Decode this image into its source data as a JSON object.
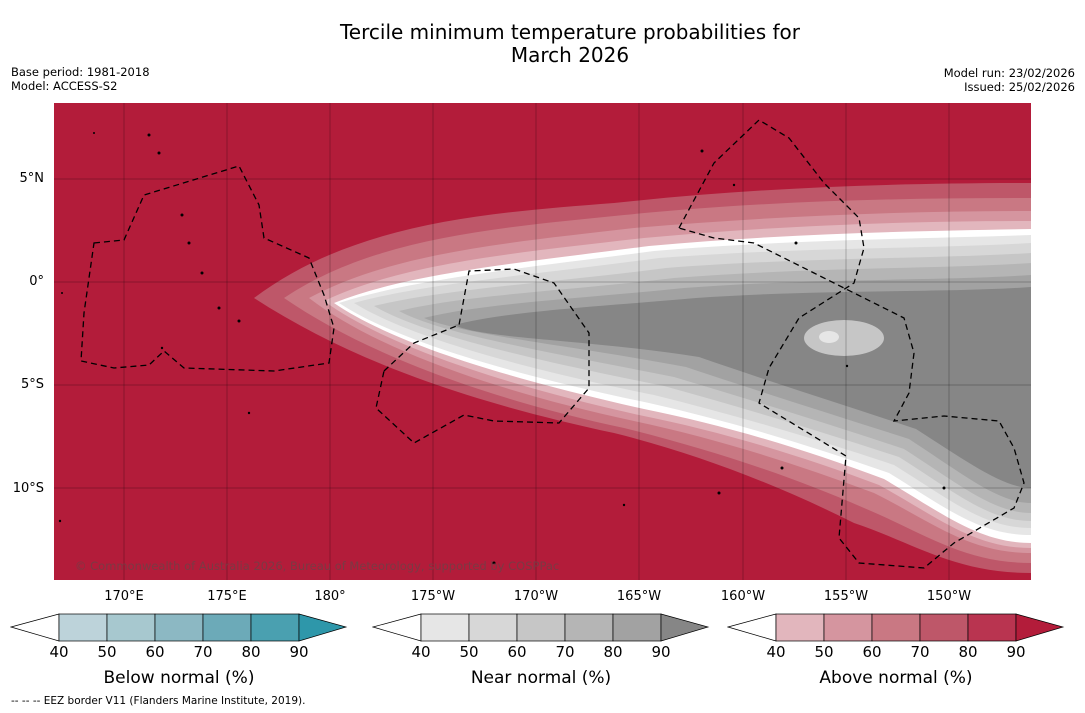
{
  "title_line1": "Tercile minimum temperature probabilities for",
  "title_line2": "March 2026",
  "base_period": "Base period: 1981-2018",
  "model": "Model: ACCESS-S2",
  "model_run": "Model run: 23/02/2026",
  "issued": "Issued: 25/02/2026",
  "copyright": "© Commonwealth of Australia 2026, Bureau of Meteorology, supported by COSPPac",
  "footer": "--  --  -- EEZ border V11 (Flanders Marine Institute, 2019).",
  "lat_labels": [
    "5°N",
    "0°",
    "5°S",
    "10°S"
  ],
  "lon_labels": [
    "170°E",
    "175°E",
    "180°",
    "175°W",
    "170°W",
    "165°W",
    "160°W",
    "155°W",
    "150°W"
  ],
  "colorbars": [
    {
      "title": "Below normal (%)",
      "ticks": [
        "40",
        "50",
        "60",
        "70",
        "80",
        "90"
      ],
      "colors": [
        "#ffffff",
        "#bdd3da",
        "#a7c8cf",
        "#8cb8c3",
        "#6caab8",
        "#4aa0b0",
        "#2e97aa"
      ]
    },
    {
      "title": "Near normal (%)",
      "ticks": [
        "40",
        "50",
        "60",
        "70",
        "80",
        "90"
      ],
      "colors": [
        "#ffffff",
        "#e6e6e6",
        "#d7d7d7",
        "#c6c6c6",
        "#b5b5b5",
        "#a2a2a2",
        "#868686"
      ]
    },
    {
      "title": "Above normal (%)",
      "ticks": [
        "40",
        "50",
        "60",
        "70",
        "80",
        "90"
      ],
      "colors": [
        "#ffffff",
        "#e2b6bd",
        "#d5959f",
        "#c97883",
        "#be5769",
        "#b93450",
        "#b31c3a"
      ]
    }
  ],
  "map_colors": {
    "dominant": "#b31c3a",
    "grey_dark": "#868686"
  }
}
